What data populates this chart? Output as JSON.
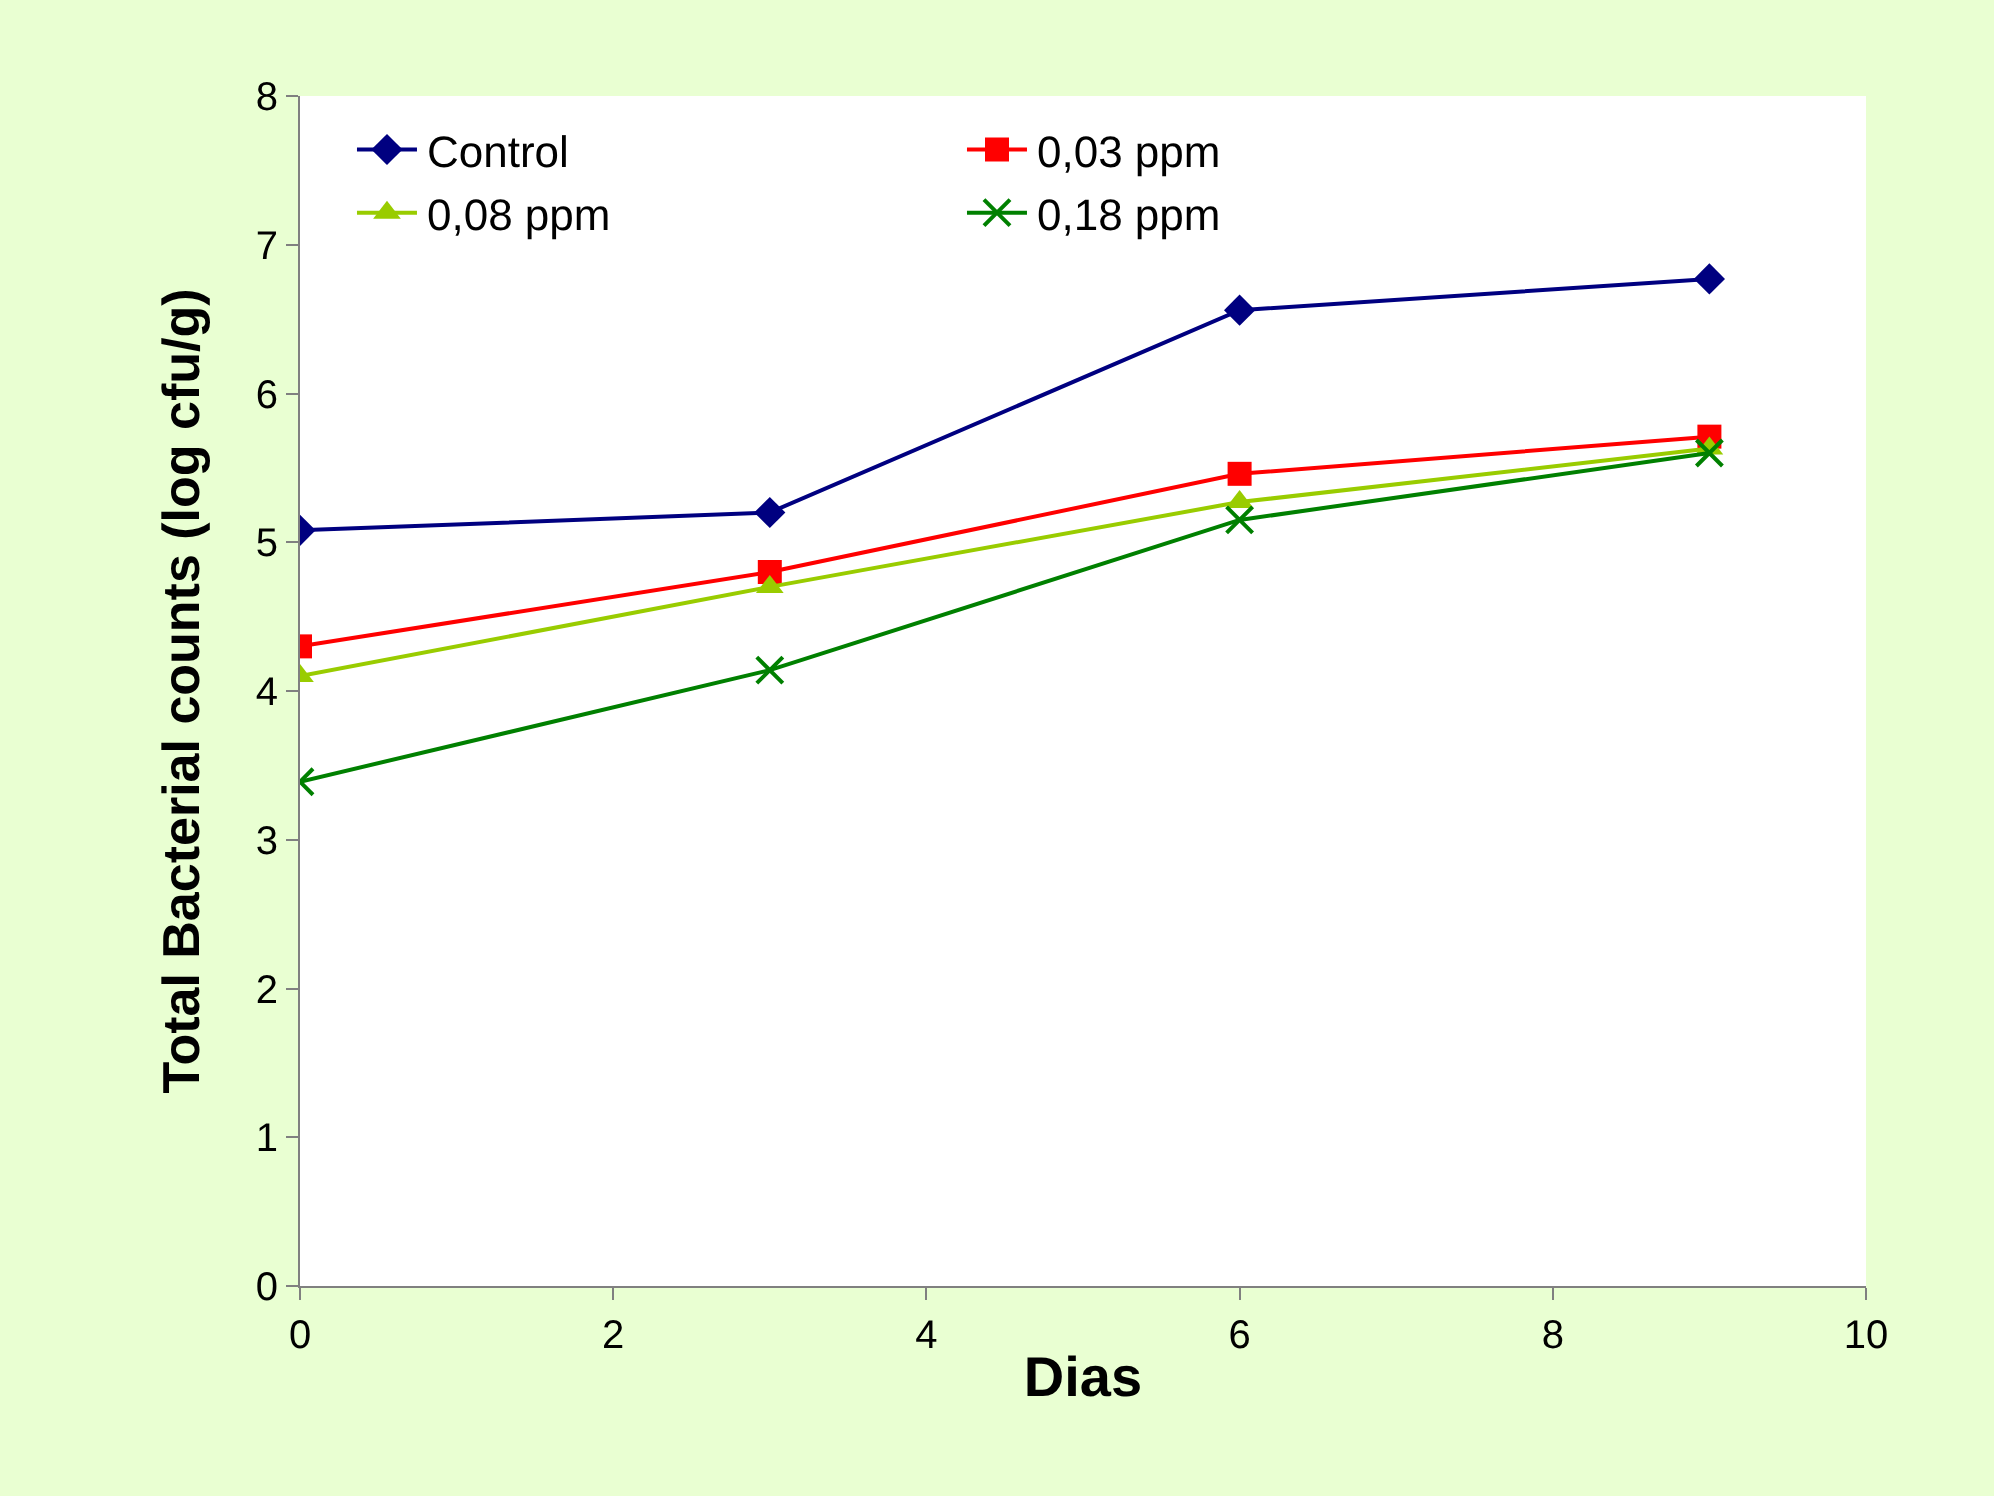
{
  "chart_data": {
    "type": "line",
    "xlabel": "Dias",
    "ylabel": "Total Bacterial counts (log cfu/g)",
    "x": [
      0,
      3,
      6,
      9
    ],
    "series": [
      {
        "name": "Control",
        "color": "#000080",
        "marker": "diamond",
        "values": [
          5.08,
          5.2,
          6.56,
          6.77
        ]
      },
      {
        "name": "0,03 ppm",
        "color": "#ff0000",
        "marker": "square",
        "values": [
          4.3,
          4.8,
          5.46,
          5.71
        ]
      },
      {
        "name": "0,08 ppm",
        "color": "#99cc00",
        "marker": "triangle",
        "values": [
          4.1,
          4.7,
          5.27,
          5.63
        ]
      },
      {
        "name": "0,18 ppm",
        "color": "#008000",
        "marker": "cross",
        "values": [
          3.39,
          4.14,
          5.15,
          5.6
        ]
      }
    ],
    "xlim": [
      0,
      10
    ],
    "xticks": [
      0,
      2,
      4,
      6,
      8,
      10
    ],
    "ylim": [
      0,
      8
    ],
    "yticks": [
      0,
      1,
      2,
      3,
      4,
      5,
      6,
      7,
      8
    ],
    "legend": "top left",
    "line_style": "solid"
  }
}
